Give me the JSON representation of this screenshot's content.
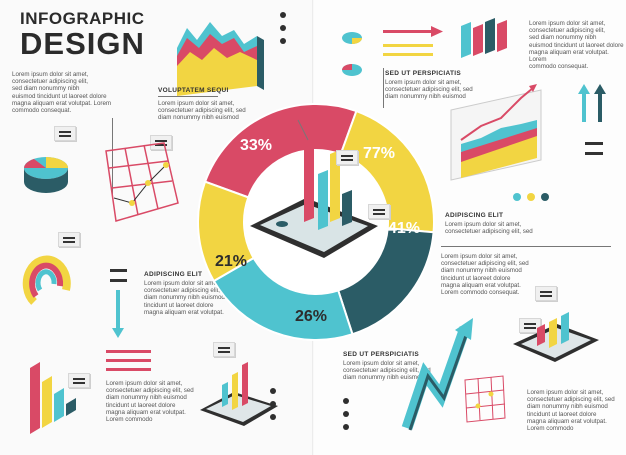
{
  "title": {
    "line1": "INFOGRAPHIC",
    "line2": "DESIGN"
  },
  "intro": [
    "Lorem ipsum dolor sit amet,",
    "consectetuer adipiscing elit,",
    "sed diam nonummy nibh",
    "euismod tincidunt ut laoreet dolore",
    "magna aliquam erat volutpat. Lorem",
    "commodo consequat."
  ],
  "callouts": {
    "voluptatem": {
      "heading": "VOLUPTATEM SEQUI",
      "body": [
        "Lorem ipsum dolor sit amet,",
        "consectetuer adipiscing elit, sed",
        "diam nonummy nibh euismod"
      ]
    },
    "adipiscing_left": {
      "heading": "ADIPISCING ELIT",
      "body": [
        "Lorem ipsum dolor sit amet,",
        "consectetuer adipiscing elit, sed",
        "diam nonummy nibh euismod",
        "tincidunt ut laoreet dolore",
        "magna aliquam erat volutpat."
      ]
    },
    "bottom_left": {
      "body": [
        "Lorem ipsum dolor sit amet,",
        "consectetuer adipiscing elit, sed",
        "diam nonummy nibh euismod",
        "tincidunt ut laoreet dolore",
        "magna aliquam erat volutpat.",
        "Lorem commodo"
      ]
    },
    "sed_ut_top": {
      "heading": "SED UT PERSPICIATIS",
      "body": [
        "Lorem ipsum dolor sit amet,",
        "consectetuer adipiscing elit, sed",
        "diam nonummy nibh euismod"
      ]
    },
    "top_right": {
      "body": [
        "Lorem ipsum dolor sit amet,",
        "consectetuer adipiscing elit,",
        "sed diam nonummy nibh",
        "euismod tincidunt ut laoreet dolore",
        "magna aliquam erat volutpat. Lorem",
        "commodo consequat."
      ]
    },
    "adipiscing_right": {
      "heading": "ADIPISCING ELIT",
      "body": [
        "Lorem ipsum dolor sit amet,",
        "consectetuer adipiscing elit, sed"
      ]
    },
    "mid_right": {
      "body": [
        "Lorem ipsum dolor sit amet,",
        "consectetuer adipiscing elit, sed",
        "diam nonummy nibh euismod",
        "tincidunt ut laoreet dolore",
        "magna aliquam erat volutpat.",
        "Lorem commodo consequat."
      ]
    },
    "sed_ut_bottom": {
      "heading": "SED UT PERSPICIATIS",
      "body": [
        "Lorem ipsum dolor sit amet,",
        "consectetuer adipiscing elit, sed",
        "diam nonummy nibh euismod"
      ]
    },
    "bottom_right": {
      "body": [
        "Lorem ipsum dolor sit amet,",
        "consectetuer adipiscing elit, sed",
        "diam nonummy nibh euismod",
        "tincidunt ut laoreet dolore",
        "magna aliquam erat volutpat.",
        "Lorem commodo"
      ]
    }
  },
  "donut": {
    "segments": [
      {
        "label": "33%",
        "color": "#d94a66"
      },
      {
        "label": "77%",
        "color": "#f2d542"
      },
      {
        "label": "41%",
        "color": "#2b5c66"
      },
      {
        "label": "26%",
        "color": "#4fc3cf"
      },
      {
        "label": "21%",
        "color": "#f2d542"
      }
    ]
  },
  "colors": {
    "red": "#d94a66",
    "yellow": "#f2d542",
    "teal": "#4fc3cf",
    "dark": "#2b5c66",
    "ink": "#2b2b2b"
  }
}
